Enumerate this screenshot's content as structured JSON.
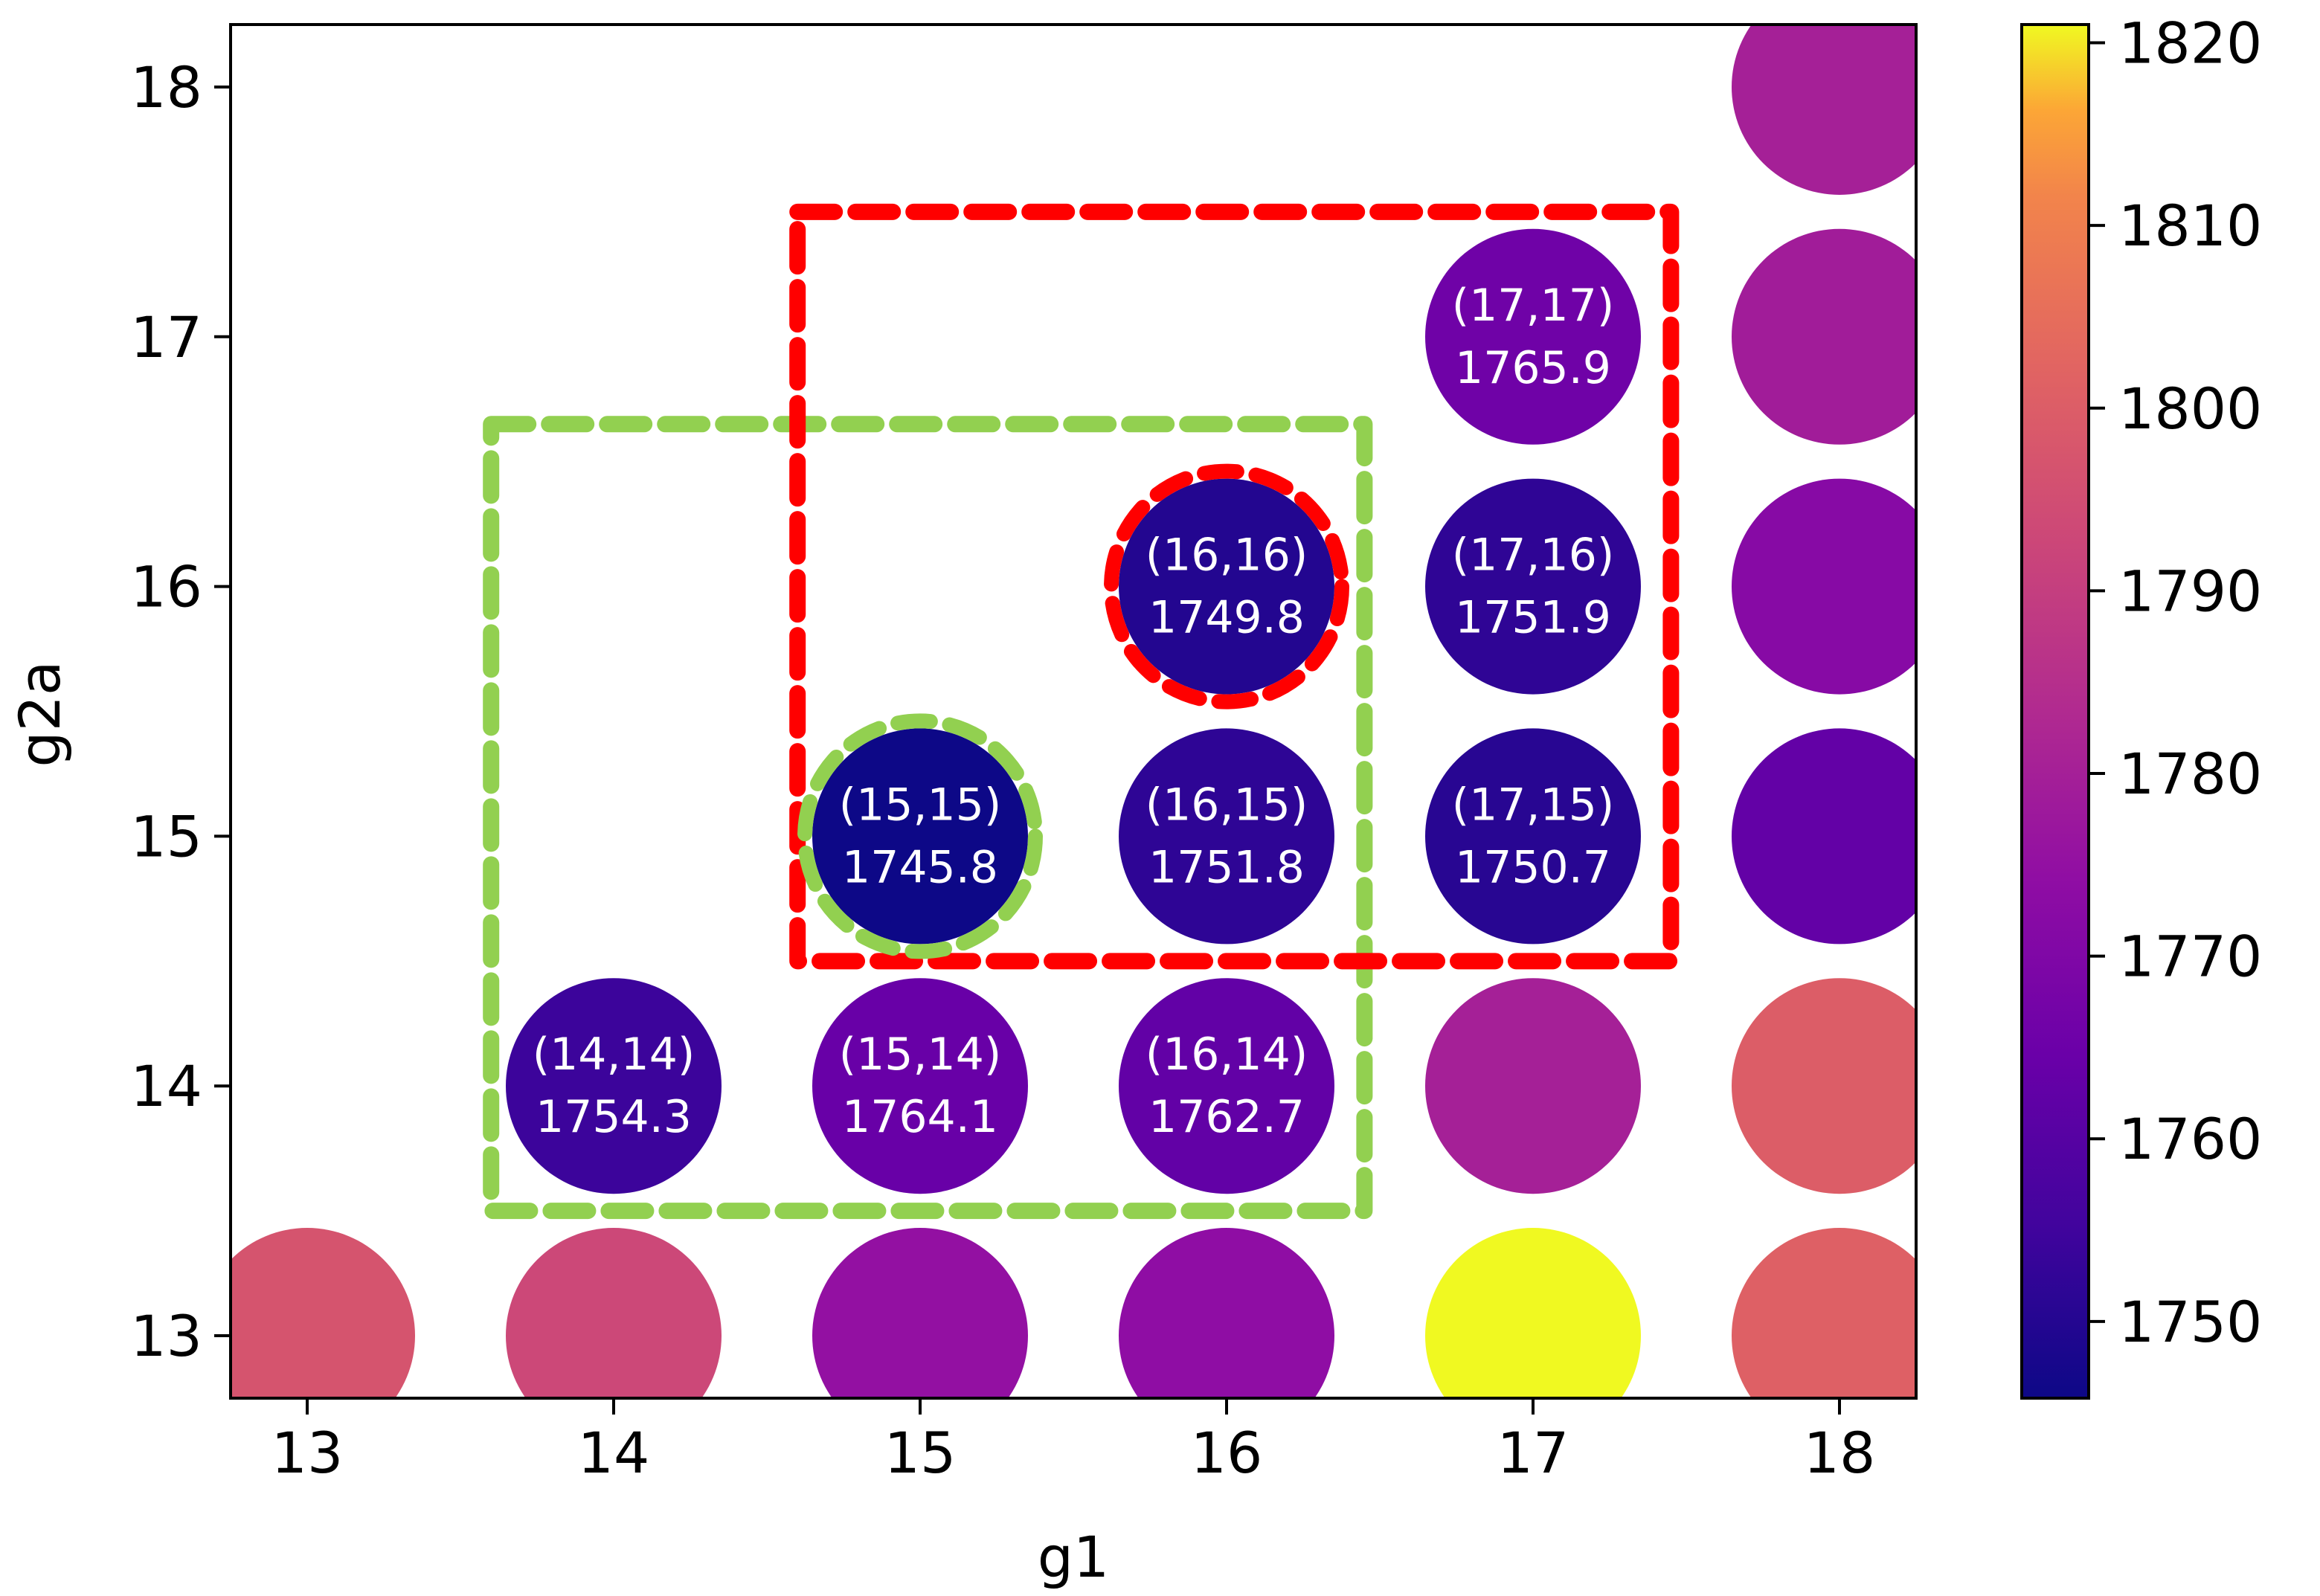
{
  "chart_data": {
    "type": "scatter",
    "title": "",
    "xlabel": "g1",
    "ylabel": "g2a",
    "xlim": [
      12.75,
      18.25
    ],
    "ylim": [
      12.75,
      18.25
    ],
    "xticks": [
      "13",
      "14",
      "15",
      "16",
      "17",
      "18"
    ],
    "yticks": [
      "13",
      "14",
      "15",
      "16",
      "17",
      "18"
    ],
    "colormap": "plasma",
    "colorbar": {
      "min": 1745.8,
      "max": 1821.0,
      "ticks": [
        "1750",
        "1760",
        "1770",
        "1780",
        "1790",
        "1800",
        "1810",
        "1820"
      ]
    },
    "points": [
      {
        "x": 13,
        "y": 13,
        "value": 1797
      },
      {
        "x": 14,
        "y": 13,
        "value": 1793
      },
      {
        "x": 15,
        "y": 13,
        "value": 1775
      },
      {
        "x": 16,
        "y": 13,
        "value": 1774
      },
      {
        "x": 17,
        "y": 13,
        "value": 1821
      },
      {
        "x": 18,
        "y": 13,
        "value": 1801
      },
      {
        "x": 14,
        "y": 14,
        "value": 1754.3,
        "label": "(14,14)",
        "value_label": "1754.3"
      },
      {
        "x": 15,
        "y": 14,
        "value": 1764.1,
        "label": "(15,14)",
        "value_label": "1764.1"
      },
      {
        "x": 16,
        "y": 14,
        "value": 1762.7,
        "label": "(16,14)",
        "value_label": "1762.7"
      },
      {
        "x": 17,
        "y": 14,
        "value": 1780
      },
      {
        "x": 18,
        "y": 14,
        "value": 1800
      },
      {
        "x": 15,
        "y": 15,
        "value": 1745.8,
        "label": "(15,15)",
        "value_label": "1745.8"
      },
      {
        "x": 16,
        "y": 15,
        "value": 1751.8,
        "label": "(16,15)",
        "value_label": "1751.8"
      },
      {
        "x": 17,
        "y": 15,
        "value": 1750.7,
        "label": "(17,15)",
        "value_label": "1750.7"
      },
      {
        "x": 18,
        "y": 15,
        "value": 1763
      },
      {
        "x": 16,
        "y": 16,
        "value": 1749.8,
        "label": "(16,16)",
        "value_label": "1749.8"
      },
      {
        "x": 17,
        "y": 16,
        "value": 1751.9,
        "label": "(17,16)",
        "value_label": "1751.9"
      },
      {
        "x": 18,
        "y": 16,
        "value": 1772
      },
      {
        "x": 17,
        "y": 17,
        "value": 1765.9,
        "label": "(17,17)",
        "value_label": "1765.9"
      },
      {
        "x": 18,
        "y": 17,
        "value": 1779
      },
      {
        "x": 18,
        "y": 18,
        "value": 1780
      }
    ],
    "highlight_boxes": [
      {
        "name": "green-box",
        "color": "#92d050",
        "x0": 13.6,
        "x1": 16.45,
        "y0": 13.5,
        "y1": 16.65
      },
      {
        "name": "red-box",
        "color": "#ff0000",
        "x0": 14.6,
        "x1": 17.45,
        "y0": 14.5,
        "y1": 17.5
      }
    ],
    "highlight_points": [
      {
        "name": "green-circle",
        "color": "#92d050",
        "x": 15,
        "y": 15
      },
      {
        "name": "red-circle",
        "color": "#ff0000",
        "x": 16,
        "y": 16
      }
    ]
  }
}
